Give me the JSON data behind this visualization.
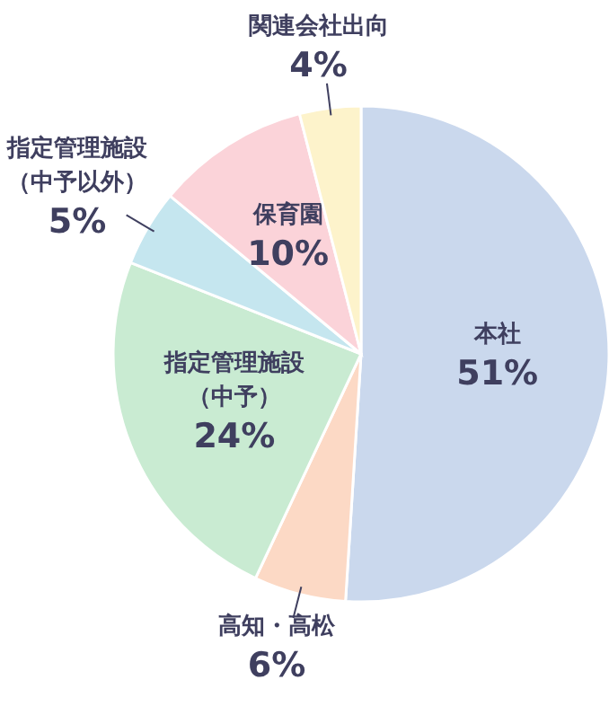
{
  "chart_data": {
    "type": "pie",
    "categories": [
      "本社",
      "高知・高松",
      "指定管理施設（中予）",
      "指定管理施設（中予以外）",
      "保育園",
      "関連会社出向"
    ],
    "values": [
      51,
      6,
      24,
      5,
      10,
      4
    ],
    "value_labels": [
      "51%",
      "6%",
      "24%",
      "5%",
      "10%",
      "4%"
    ],
    "colors": [
      "#cad8ed",
      "#fcd9c5",
      "#c9ebd2",
      "#c5e6ef",
      "#fbd3d9",
      "#fdf3cb"
    ]
  }
}
